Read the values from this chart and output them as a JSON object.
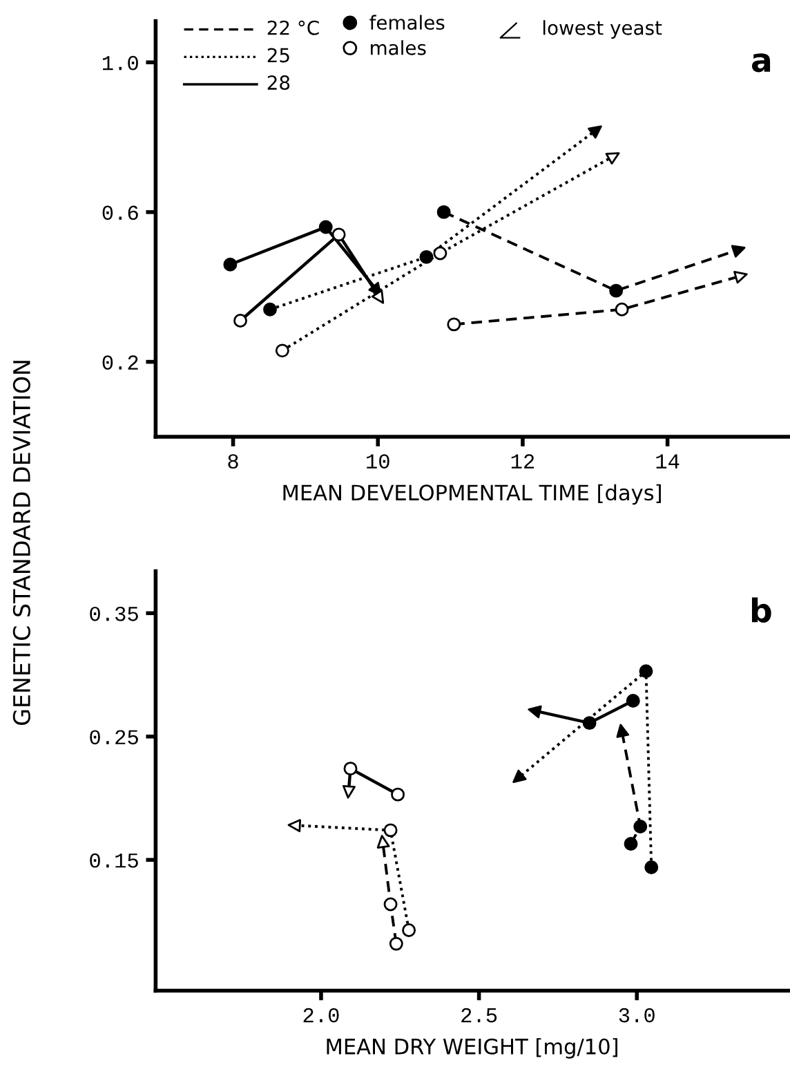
{
  "chart_data": [
    {
      "type": "line",
      "xlabel": "MEAN DEVELOPMENTAL TIME [days]",
      "ylabel": "GENETIC STANDARD DEVIATION",
      "xlim": [
        6.93,
        15.67
      ],
      "xticks": [
        8,
        10,
        12,
        14
      ],
      "ylim": [
        0,
        1.11
      ],
      "yticks": [
        0.2,
        0.6,
        {
          "value": 1,
          "label": "1.0"
        }
      ],
      "marker": "circle",
      "grid": false,
      "legend": "top left",
      "annotations": [
        "22 °C",
        "25",
        "28",
        "lowest yeast",
        "a"
      ],
      "series": [
        {
          "name": "females",
          "color": "#000000",
          "line_style": "dashed",
          "x": [
            10.91,
            13.29,
            14.99
          ],
          "values": [
            0.6,
            0.39,
            0.5
          ]
        },
        {
          "name": "males",
          "color": "#000000",
          "colors": [
            "#ffffff",
            "#ffffff",
            "#ffffff"
          ],
          "line_style": "dashed",
          "x": [
            11.05,
            13.37,
            15.02
          ],
          "values": [
            0.3,
            0.34,
            0.43
          ]
        },
        {
          "color": "#000000",
          "line_style": "dotted",
          "x": [
            8.51,
            10.67,
            13.02
          ],
          "values": [
            0.34,
            0.48,
            0.82
          ]
        },
        {
          "color": "#000000",
          "colors": [
            "#ffffff",
            "#ffffff",
            "#ffffff"
          ],
          "line_style": "dotted",
          "x": [
            8.68,
            10.86,
            13.26
          ],
          "values": [
            0.23,
            0.49,
            0.75
          ]
        },
        {
          "color": "#000000",
          "line_style": "solid",
          "x": [
            7.96,
            9.28,
            9.99
          ],
          "values": [
            0.46,
            0.56,
            0.39
          ]
        },
        {
          "color": "#000000",
          "colors": [
            "#ffffff",
            "#ffffff",
            "#ffffff"
          ],
          "line_style": "solid",
          "x": [
            8.1,
            9.46,
            10.03
          ],
          "values": [
            0.31,
            0.54,
            0.37
          ]
        }
      ]
    },
    {
      "type": "line",
      "xlabel": "MEAN DRY WEIGHT [mg/10]",
      "xlim": [
        1.476,
        3.48
      ],
      "xticks": [
        {
          "value": 2,
          "label": "2.0"
        },
        2.5,
        {
          "value": 3,
          "label": "3.0"
        }
      ],
      "ylim": [
        0.044,
        0.384
      ],
      "yticks": [
        0.15,
        0.25,
        0.35
      ],
      "marker": "circle",
      "grid": false,
      "annotations": [
        "b"
      ],
      "series": [
        {
          "color": "#000000",
          "line_style": "dashed",
          "x": [
            2.981,
            3.011,
            2.952
          ],
          "values": [
            0.163,
            0.177,
            0.255
          ]
        },
        {
          "color": "#000000",
          "colors": [
            "#ffffff",
            "#ffffff",
            "#ffffff"
          ],
          "line_style": "dashed",
          "x": [
            2.238,
            2.22,
            2.195
          ],
          "values": [
            0.082,
            0.114,
            0.165
          ]
        },
        {
          "color": "#000000",
          "line_style": "dotted",
          "x": [
            3.046,
            3.029,
            2.623
          ],
          "values": [
            0.144,
            0.303,
            0.216
          ]
        },
        {
          "color": "#000000",
          "colors": [
            "#ffffff",
            "#ffffff",
            "#ffffff"
          ],
          "line_style": "dotted",
          "x": [
            2.278,
            2.22,
            1.915
          ],
          "values": [
            0.093,
            0.174,
            0.178
          ]
        },
        {
          "color": "#000000",
          "line_style": "solid",
          "x": [
            2.988,
            2.85,
            2.675
          ],
          "values": [
            0.279,
            0.261,
            0.271
          ]
        },
        {
          "color": "#000000",
          "colors": [
            "#ffffff",
            "#ffffff",
            "#ffffff"
          ],
          "line_style": "solid",
          "x": [
            2.243,
            2.093,
            2.087
          ],
          "values": [
            0.203,
            0.224,
            0.205
          ]
        }
      ]
    }
  ]
}
